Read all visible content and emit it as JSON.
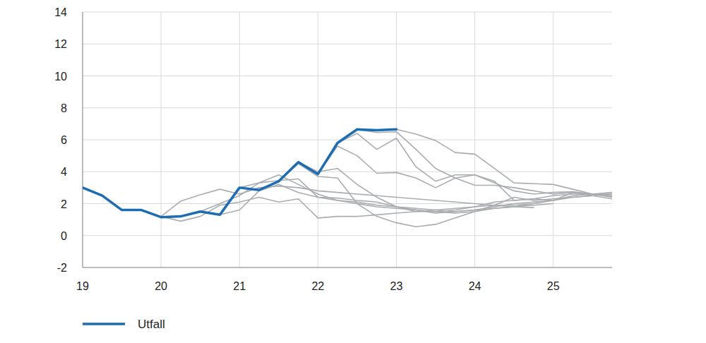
{
  "chart_data": {
    "type": "line",
    "x": [
      19,
      19.25,
      19.5,
      19.75,
      20,
      20.25,
      20.5,
      20.75,
      21,
      21.25,
      21.5,
      21.75,
      22,
      22.25,
      22.5,
      22.75,
      23,
      23.25,
      23.5,
      23.75,
      24,
      24.25,
      24.5,
      24.75,
      25,
      25.25,
      25.5,
      25.75
    ],
    "xlim": [
      19,
      25.75
    ],
    "xticks": [
      19,
      20,
      21,
      22,
      23,
      24,
      25
    ],
    "ylim": [
      -2,
      14
    ],
    "yticks": [
      -2,
      0,
      2,
      4,
      6,
      8,
      10,
      12,
      14
    ],
    "grid": true,
    "legend": "bottom-left",
    "series": [
      {
        "name": "Utfall",
        "color": "#1b6cb3",
        "values": [
          3.0,
          2.5,
          1.6,
          1.6,
          1.15,
          1.2,
          1.5,
          1.3,
          3.0,
          2.85,
          3.4,
          4.6,
          3.85,
          5.8,
          6.65,
          6.6,
          6.65,
          null,
          null,
          null,
          null,
          null,
          null,
          null,
          null,
          null,
          null,
          null
        ]
      },
      {
        "color": "#a9acb0",
        "values": [
          null,
          null,
          null,
          null,
          1.2,
          0.9,
          1.2,
          1.9,
          2.1,
          2.4,
          2.1,
          2.3,
          1.1,
          1.2,
          1.2,
          1.3,
          1.4,
          1.5,
          1.6,
          1.7,
          1.8,
          1.9,
          1.9,
          2.0,
          null,
          null,
          null,
          null
        ]
      },
      {
        "color": "#a9acb0",
        "values": [
          null,
          null,
          null,
          null,
          1.2,
          2.15,
          2.55,
          2.9,
          2.6,
          3.0,
          3.1,
          3.0,
          2.8,
          2.7,
          2.6,
          2.5,
          2.4,
          2.3,
          2.2,
          2.1,
          2.0,
          1.9,
          1.8,
          1.75,
          null,
          null,
          null,
          null
        ]
      },
      {
        "color": "#a9acb0",
        "values": [
          null,
          null,
          null,
          null,
          null,
          1.2,
          1.5,
          2.0,
          2.5,
          3.3,
          3.8,
          3.2,
          2.6,
          2.2,
          2.1,
          1.9,
          1.8,
          1.7,
          1.6,
          1.5,
          1.6,
          1.7,
          1.8,
          1.9,
          2.0,
          null,
          null,
          null
        ]
      },
      {
        "color": "#a9acb0",
        "values": [
          null,
          null,
          null,
          null,
          null,
          null,
          null,
          1.3,
          1.6,
          2.8,
          3.2,
          2.7,
          2.4,
          2.2,
          2.0,
          1.8,
          1.7,
          1.6,
          1.5,
          1.4,
          1.5,
          1.7,
          1.8,
          2.0,
          2.2,
          2.4,
          2.5,
          null
        ]
      },
      {
        "color": "#a9acb0",
        "values": [
          null,
          null,
          null,
          null,
          null,
          null,
          null,
          null,
          3.0,
          3.3,
          3.45,
          3.55,
          2.4,
          2.35,
          2.2,
          2.1,
          1.8,
          1.6,
          1.4,
          1.5,
          1.6,
          1.8,
          2.0,
          2.1,
          2.2,
          2.5,
          2.6,
          2.7
        ]
      },
      {
        "color": "#a9acb0",
        "values": [
          null,
          null,
          null,
          null,
          null,
          null,
          null,
          null,
          null,
          null,
          3.4,
          4.5,
          3.7,
          3.6,
          2.0,
          1.2,
          0.8,
          0.55,
          0.7,
          1.1,
          1.5,
          1.9,
          2.4,
          2.2,
          2.3,
          2.4,
          2.5,
          2.6
        ]
      },
      {
        "color": "#a9acb0",
        "values": [
          null,
          null,
          null,
          null,
          null,
          null,
          null,
          null,
          null,
          null,
          null,
          4.6,
          4.0,
          4.2,
          3.2,
          2.4,
          1.8,
          1.5,
          1.5,
          1.6,
          1.8,
          2.1,
          2.2,
          2.3,
          2.5,
          2.6,
          2.6,
          2.6
        ]
      },
      {
        "color": "#a9acb0",
        "values": [
          null,
          null,
          null,
          null,
          null,
          null,
          null,
          null,
          null,
          null,
          null,
          null,
          3.85,
          5.6,
          5.0,
          3.9,
          3.95,
          3.6,
          3.0,
          3.6,
          3.8,
          3.4,
          2.2,
          2.3,
          2.2,
          2.7,
          2.6,
          2.5
        ]
      },
      {
        "color": "#a9acb0",
        "values": [
          null,
          null,
          null,
          null,
          null,
          null,
          null,
          null,
          null,
          null,
          null,
          null,
          null,
          5.8,
          6.4,
          5.4,
          6.1,
          4.3,
          3.4,
          3.8,
          3.8,
          3.3,
          2.8,
          2.6,
          2.7,
          2.75,
          2.6,
          2.4
        ]
      },
      {
        "color": "#a9acb0",
        "values": [
          null,
          null,
          null,
          null,
          null,
          null,
          null,
          null,
          null,
          null,
          null,
          null,
          null,
          null,
          6.65,
          6.45,
          6.5,
          5.4,
          4.2,
          3.6,
          3.15,
          3.15,
          3.0,
          2.8,
          2.6,
          2.7,
          2.5,
          2.3
        ]
      },
      {
        "color": "#a9acb0",
        "values": [
          null,
          null,
          null,
          null,
          null,
          null,
          null,
          null,
          null,
          null,
          null,
          null,
          null,
          null,
          null,
          null,
          6.65,
          6.35,
          5.95,
          5.2,
          5.1,
          4.2,
          3.3,
          3.25,
          3.2,
          2.9,
          2.6,
          2.45
        ]
      }
    ]
  }
}
